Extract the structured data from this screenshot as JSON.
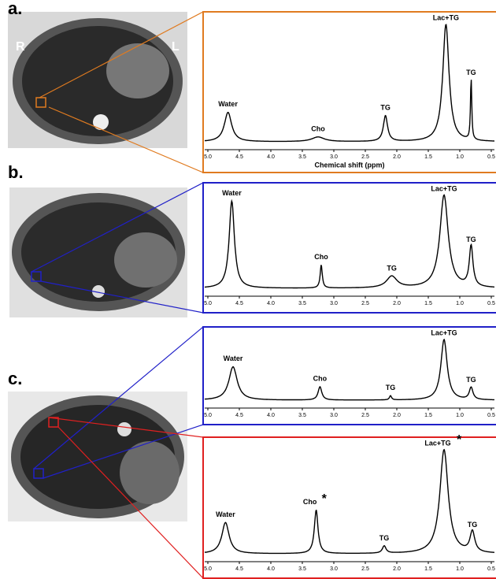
{
  "panels": [
    {
      "label": "a."
    },
    {
      "label": "b."
    },
    {
      "label": "c."
    }
  ],
  "image_labels": [
    "R",
    "L"
  ],
  "chart_data": [
    {
      "type": "spectrum",
      "color": "#e07b20",
      "xlabel": "Chemical shift (ppm)",
      "xlim": [
        5.05,
        0.45
      ],
      "xticks": [
        {
          "value": 5,
          "label": "5.0"
        },
        {
          "value": 4.5,
          "label": "4.5"
        },
        {
          "value": 4,
          "label": "4.0"
        },
        {
          "value": 3.5,
          "label": "3.5"
        },
        {
          "value": 3,
          "label": "3.0"
        },
        {
          "value": 2.5,
          "label": "2.5"
        },
        {
          "value": 2,
          "label": "2.0"
        },
        {
          "value": 1.5,
          "label": "1.5"
        },
        {
          "value": 1,
          "label": "1.0"
        },
        {
          "value": 0.5,
          "label": "0.5"
        }
      ],
      "peaks": [
        {
          "label": "Water",
          "x": 4.68,
          "height": 0.25,
          "width": 0.07
        },
        {
          "label": "Cho",
          "x": 3.25,
          "height": 0.04,
          "width": 0.12
        },
        {
          "label": "TG",
          "x": 2.18,
          "height": 0.22,
          "width": 0.04
        },
        {
          "label": "Lac+TG",
          "x": 1.22,
          "height": 1.0,
          "width": 0.06
        },
        {
          "label": "TG",
          "x": 0.82,
          "height": 0.52,
          "width": 0.012
        }
      ]
    },
    {
      "type": "spectrum",
      "color": "#2020c8",
      "xlim": [
        5.05,
        0.45
      ],
      "xticks": [
        {
          "value": 5,
          "label": "5.0"
        },
        {
          "value": 4.5,
          "label": "4.5"
        },
        {
          "value": 4,
          "label": "4.0"
        },
        {
          "value": 3.5,
          "label": "3.5"
        },
        {
          "value": 3,
          "label": "3.0"
        },
        {
          "value": 2.5,
          "label": "2.5"
        },
        {
          "value": 2,
          "label": "2.0"
        },
        {
          "value": 1.5,
          "label": "1.5"
        },
        {
          "value": 1,
          "label": "1.0"
        },
        {
          "value": 0.5,
          "label": "0.5"
        }
      ],
      "peaks": [
        {
          "label": "Water",
          "x": 4.62,
          "height": 0.75,
          "width": 0.05
        },
        {
          "label": "Cho",
          "x": 3.2,
          "height": 0.2,
          "width": 0.02
        },
        {
          "label": "TG",
          "x": 2.08,
          "height": 0.1,
          "width": 0.1
        },
        {
          "label": "Lac+TG",
          "x": 1.25,
          "height": 0.8,
          "width": 0.08
        },
        {
          "label": "TG",
          "x": 0.82,
          "height": 0.35,
          "width": 0.035
        }
      ]
    },
    {
      "type": "spectrum",
      "color": "#2020c8",
      "xlim": [
        5.05,
        0.45
      ],
      "xticks": [
        {
          "value": 5,
          "label": "5.0"
        },
        {
          "value": 4.5,
          "label": "4.5"
        },
        {
          "value": 4,
          "label": "4.0"
        },
        {
          "value": 3.5,
          "label": "3.5"
        },
        {
          "value": 3,
          "label": "3.0"
        },
        {
          "value": 2.5,
          "label": "2.5"
        },
        {
          "value": 2,
          "label": "2.0"
        },
        {
          "value": 1.5,
          "label": "1.5"
        },
        {
          "value": 1,
          "label": "1.0"
        },
        {
          "value": 0.5,
          "label": "0.5"
        }
      ],
      "peaks": [
        {
          "label": "Water",
          "x": 4.6,
          "height": 0.55,
          "width": 0.08
        },
        {
          "label": "Cho",
          "x": 3.22,
          "height": 0.22,
          "width": 0.035
        },
        {
          "label": "TG",
          "x": 2.1,
          "height": 0.07,
          "width": 0.02
        },
        {
          "label": "Lac+TG",
          "x": 1.25,
          "height": 1.0,
          "width": 0.06
        },
        {
          "label": "TG",
          "x": 0.82,
          "height": 0.2,
          "width": 0.035
        }
      ]
    },
    {
      "type": "spectrum",
      "color": "#e02020",
      "xlim": [
        5.05,
        0.45
      ],
      "xticks": [
        {
          "value": 5,
          "label": "5.0"
        },
        {
          "value": 4.5,
          "label": "4.5"
        },
        {
          "value": 4,
          "label": "4.0"
        },
        {
          "value": 3.5,
          "label": "3.5"
        },
        {
          "value": 3,
          "label": "3.0"
        },
        {
          "value": 2.5,
          "label": "2.5"
        },
        {
          "value": 2,
          "label": "2.0"
        },
        {
          "value": 1.5,
          "label": "1.5"
        },
        {
          "value": 1,
          "label": "1.0"
        },
        {
          "value": 0.5,
          "label": "0.5"
        }
      ],
      "peaks": [
        {
          "label": "Water",
          "x": 4.72,
          "height": 0.3,
          "width": 0.07
        },
        {
          "label": "Cho",
          "x": 3.28,
          "height": 0.42,
          "width": 0.035,
          "mark": "*"
        },
        {
          "label": "TG",
          "x": 2.2,
          "height": 0.07,
          "width": 0.035
        },
        {
          "label": "Lac+TG",
          "x": 1.25,
          "height": 1.0,
          "width": 0.08,
          "mark": "*"
        },
        {
          "label": "TG",
          "x": 0.8,
          "height": 0.2,
          "width": 0.045
        }
      ]
    }
  ]
}
